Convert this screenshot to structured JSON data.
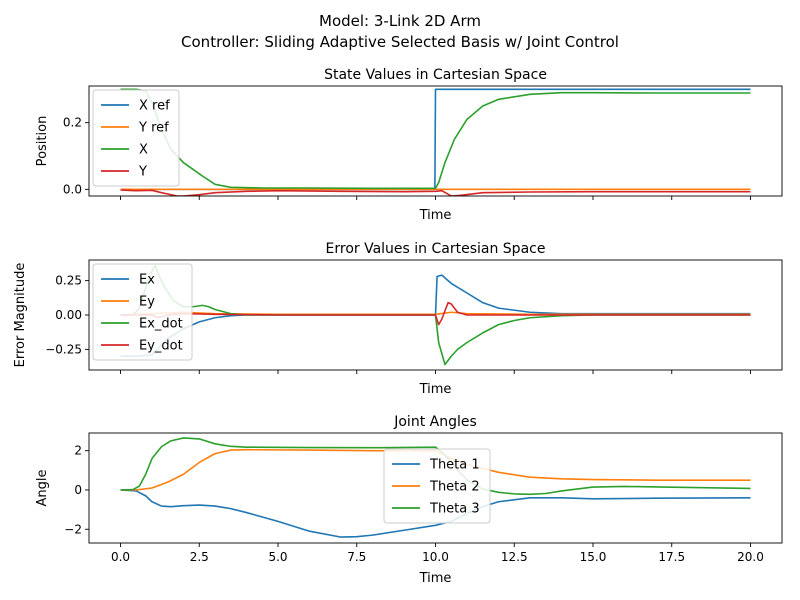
{
  "figure": {
    "title_line1": "Model: 3-Link 2D Arm",
    "title_line2": "Controller: Sliding Adaptive Selected Basis w/ Joint Control"
  },
  "chart_data": [
    {
      "type": "line",
      "title": "State Values in Cartesian Space",
      "xlabel": "Time",
      "ylabel": "Position",
      "xlim": [
        -1.0,
        21.0
      ],
      "ylim": [
        -0.02,
        0.31
      ],
      "xticks": [
        0.0,
        2.5,
        5.0,
        7.5,
        10.0,
        12.5,
        15.0,
        17.5,
        20.0
      ],
      "xtick_labels_shown": false,
      "yticks": [
        0.0,
        0.2
      ],
      "ytick_labels": [
        "0.0",
        "0.2"
      ],
      "legend": "upper-left",
      "series": [
        {
          "name": "X ref",
          "color": "#1f77b4",
          "points": [
            [
              0,
              0
            ],
            [
              9.98,
              0
            ],
            [
              10.0,
              0.3
            ],
            [
              20,
              0.3
            ]
          ]
        },
        {
          "name": "Y ref",
          "color": "#ff7f0e",
          "points": [
            [
              0,
              0
            ],
            [
              20,
              0
            ]
          ]
        },
        {
          "name": "X",
          "color": "#2ca02c",
          "points": [
            [
              0,
              0.3
            ],
            [
              0.5,
              0.3
            ],
            [
              0.8,
              0.295
            ],
            [
              1.0,
              0.26
            ],
            [
              1.3,
              0.18
            ],
            [
              1.6,
              0.12
            ],
            [
              2.0,
              0.08
            ],
            [
              2.3,
              0.06
            ],
            [
              2.6,
              0.04
            ],
            [
              3.0,
              0.015
            ],
            [
              3.5,
              0.006
            ],
            [
              4.5,
              0.004
            ],
            [
              6.0,
              0.004
            ],
            [
              8.0,
              0.003
            ],
            [
              10.0,
              0.003
            ],
            [
              10.1,
              0.02
            ],
            [
              10.3,
              0.08
            ],
            [
              10.6,
              0.15
            ],
            [
              11.0,
              0.21
            ],
            [
              11.5,
              0.25
            ],
            [
              12.0,
              0.27
            ],
            [
              13.0,
              0.285
            ],
            [
              14.0,
              0.29
            ],
            [
              15.0,
              0.29
            ],
            [
              17.0,
              0.289
            ],
            [
              20.0,
              0.289
            ]
          ]
        },
        {
          "name": "Y",
          "color": "#d62728",
          "points": [
            [
              0,
              -0.002
            ],
            [
              0.5,
              -0.004
            ],
            [
              1.0,
              -0.003
            ],
            [
              1.3,
              -0.01
            ],
            [
              1.8,
              -0.02
            ],
            [
              2.0,
              -0.02
            ],
            [
              2.5,
              -0.016
            ],
            [
              3.0,
              -0.01
            ],
            [
              4.0,
              -0.006
            ],
            [
              5.0,
              -0.004
            ],
            [
              7.0,
              -0.006
            ],
            [
              9.0,
              -0.007
            ],
            [
              10.0,
              -0.006
            ],
            [
              10.2,
              -0.004
            ],
            [
              10.5,
              -0.02
            ],
            [
              10.8,
              -0.018
            ],
            [
              11.5,
              -0.01
            ],
            [
              13.0,
              -0.008
            ],
            [
              15.0,
              -0.007
            ],
            [
              20.0,
              -0.007
            ]
          ]
        }
      ]
    },
    {
      "type": "line",
      "title": "Error Values in Cartesian Space",
      "xlabel": "Time",
      "ylabel": "Error Magnitude",
      "xlim": [
        -1.0,
        21.0
      ],
      "ylim": [
        -0.4,
        0.4
      ],
      "xticks": [
        0.0,
        2.5,
        5.0,
        7.5,
        10.0,
        12.5,
        15.0,
        17.5,
        20.0
      ],
      "xtick_labels_shown": false,
      "yticks": [
        -0.25,
        0.0,
        0.25
      ],
      "ytick_labels": [
        "−0.25",
        "0.00",
        "0.25"
      ],
      "legend": "upper-left",
      "series": [
        {
          "name": "Ex",
          "color": "#1f77b4",
          "points": [
            [
              0,
              -0.3
            ],
            [
              0.5,
              -0.3
            ],
            [
              1.0,
              -0.29
            ],
            [
              1.5,
              -0.17
            ],
            [
              2.0,
              -0.1
            ],
            [
              2.5,
              -0.05
            ],
            [
              3.0,
              -0.02
            ],
            [
              3.5,
              -0.005
            ],
            [
              4.0,
              0
            ],
            [
              10.0,
              0
            ],
            [
              10.05,
              0.28
            ],
            [
              10.2,
              0.29
            ],
            [
              10.5,
              0.23
            ],
            [
              11.0,
              0.16
            ],
            [
              11.5,
              0.09
            ],
            [
              12.0,
              0.05
            ],
            [
              13.0,
              0.02
            ],
            [
              14.0,
              0.01
            ],
            [
              15.0,
              0.01
            ],
            [
              20.0,
              0.01
            ]
          ]
        },
        {
          "name": "Ey",
          "color": "#ff7f0e",
          "points": [
            [
              0,
              0
            ],
            [
              1.0,
              0.01
            ],
            [
              2.0,
              0.02
            ],
            [
              3.0,
              0.01
            ],
            [
              5.0,
              0.005
            ],
            [
              10.0,
              0.005
            ],
            [
              10.5,
              0.02
            ],
            [
              11.0,
              0.01
            ],
            [
              13.0,
              0.005
            ],
            [
              20.0,
              0.005
            ]
          ]
        },
        {
          "name": "Ex_dot",
          "color": "#2ca02c",
          "points": [
            [
              0,
              0
            ],
            [
              0.4,
              0
            ],
            [
              0.6,
              0.05
            ],
            [
              0.8,
              0.2
            ],
            [
              1.0,
              0.32
            ],
            [
              1.1,
              0.36
            ],
            [
              1.2,
              0.3
            ],
            [
              1.4,
              0.2
            ],
            [
              1.7,
              0.1
            ],
            [
              2.0,
              0.06
            ],
            [
              2.3,
              0.06
            ],
            [
              2.6,
              0.07
            ],
            [
              2.8,
              0.06
            ],
            [
              3.0,
              0.04
            ],
            [
              3.5,
              0.01
            ],
            [
              4.0,
              0
            ],
            [
              10.0,
              0
            ],
            [
              10.1,
              -0.2
            ],
            [
              10.3,
              -0.36
            ],
            [
              10.5,
              -0.3
            ],
            [
              10.7,
              -0.25
            ],
            [
              11.0,
              -0.2
            ],
            [
              11.5,
              -0.13
            ],
            [
              12.0,
              -0.07
            ],
            [
              12.5,
              -0.04
            ],
            [
              13.0,
              -0.02
            ],
            [
              14.0,
              -0.005
            ],
            [
              15.0,
              0
            ],
            [
              20.0,
              0
            ]
          ]
        },
        {
          "name": "Ey_dot",
          "color": "#d62728",
          "points": [
            [
              0,
              0
            ],
            [
              1.0,
              0
            ],
            [
              1.2,
              -0.02
            ],
            [
              1.5,
              0
            ],
            [
              2.0,
              0.01
            ],
            [
              3.0,
              0.005
            ],
            [
              5.0,
              0
            ],
            [
              10.0,
              0
            ],
            [
              10.1,
              -0.07
            ],
            [
              10.2,
              -0.03
            ],
            [
              10.4,
              0.09
            ],
            [
              10.5,
              0.08
            ],
            [
              10.7,
              0.02
            ],
            [
              11.0,
              0
            ],
            [
              20.0,
              0
            ]
          ]
        }
      ]
    },
    {
      "type": "line",
      "title": "Joint Angles",
      "xlabel": "Time",
      "ylabel": "Angle",
      "xlim": [
        -1.0,
        21.0
      ],
      "ylim": [
        -2.7,
        2.9
      ],
      "xticks": [
        0.0,
        2.5,
        5.0,
        7.5,
        10.0,
        12.5,
        15.0,
        17.5,
        20.0
      ],
      "xtick_labels": [
        "0.0",
        "2.5",
        "5.0",
        "7.5",
        "10.0",
        "12.5",
        "15.0",
        "17.5",
        "20.0"
      ],
      "xtick_labels_shown": true,
      "yticks": [
        -2,
        0,
        2
      ],
      "ytick_labels": [
        "−2",
        "0",
        "2"
      ],
      "legend": "center",
      "series": [
        {
          "name": "Theta 1",
          "color": "#1f77b4",
          "points": [
            [
              0,
              0
            ],
            [
              0.5,
              -0.05
            ],
            [
              0.8,
              -0.3
            ],
            [
              1.0,
              -0.6
            ],
            [
              1.3,
              -0.82
            ],
            [
              1.6,
              -0.85
            ],
            [
              2.0,
              -0.8
            ],
            [
              2.5,
              -0.77
            ],
            [
              3.0,
              -0.82
            ],
            [
              3.5,
              -0.95
            ],
            [
              4.0,
              -1.15
            ],
            [
              5.0,
              -1.6
            ],
            [
              6.0,
              -2.1
            ],
            [
              7.0,
              -2.4
            ],
            [
              7.5,
              -2.38
            ],
            [
              8.0,
              -2.3
            ],
            [
              9.0,
              -2.05
            ],
            [
              10.0,
              -1.8
            ],
            [
              10.5,
              -1.6
            ],
            [
              11.0,
              -1.2
            ],
            [
              11.5,
              -0.85
            ],
            [
              12.0,
              -0.6
            ],
            [
              13.0,
              -0.4
            ],
            [
              14.0,
              -0.4
            ],
            [
              15.0,
              -0.45
            ],
            [
              17.0,
              -0.42
            ],
            [
              20.0,
              -0.4
            ]
          ]
        },
        {
          "name": "Theta 2",
          "color": "#ff7f0e",
          "points": [
            [
              0,
              0
            ],
            [
              0.5,
              0
            ],
            [
              1.0,
              0.1
            ],
            [
              1.5,
              0.4
            ],
            [
              2.0,
              0.8
            ],
            [
              2.5,
              1.4
            ],
            [
              3.0,
              1.85
            ],
            [
              3.5,
              2.03
            ],
            [
              4.0,
              2.05
            ],
            [
              6.0,
              2.03
            ],
            [
              8.0,
              2.0
            ],
            [
              10.0,
              2.0
            ],
            [
              10.5,
              1.6
            ],
            [
              11.0,
              1.3
            ],
            [
              11.5,
              1.1
            ],
            [
              12.0,
              0.9
            ],
            [
              13.0,
              0.65
            ],
            [
              14.0,
              0.57
            ],
            [
              15.0,
              0.53
            ],
            [
              17.0,
              0.5
            ],
            [
              20.0,
              0.5
            ]
          ]
        },
        {
          "name": "Theta 3",
          "color": "#2ca02c",
          "points": [
            [
              0,
              0
            ],
            [
              0.4,
              0.02
            ],
            [
              0.6,
              0.2
            ],
            [
              0.8,
              0.8
            ],
            [
              1.0,
              1.6
            ],
            [
              1.3,
              2.2
            ],
            [
              1.6,
              2.5
            ],
            [
              2.0,
              2.65
            ],
            [
              2.5,
              2.6
            ],
            [
              3.0,
              2.35
            ],
            [
              3.5,
              2.22
            ],
            [
              4.0,
              2.18
            ],
            [
              6.0,
              2.16
            ],
            [
              8.0,
              2.15
            ],
            [
              10.0,
              2.18
            ],
            [
              10.3,
              1.8
            ],
            [
              10.6,
              1.2
            ],
            [
              11.0,
              0.5
            ],
            [
              11.5,
              0.05
            ],
            [
              12.0,
              -0.12
            ],
            [
              12.5,
              -0.2
            ],
            [
              13.0,
              -0.22
            ],
            [
              13.5,
              -0.18
            ],
            [
              14.0,
              -0.05
            ],
            [
              15.0,
              0.15
            ],
            [
              16.0,
              0.18
            ],
            [
              17.5,
              0.14
            ],
            [
              20.0,
              0.08
            ]
          ]
        }
      ]
    }
  ]
}
